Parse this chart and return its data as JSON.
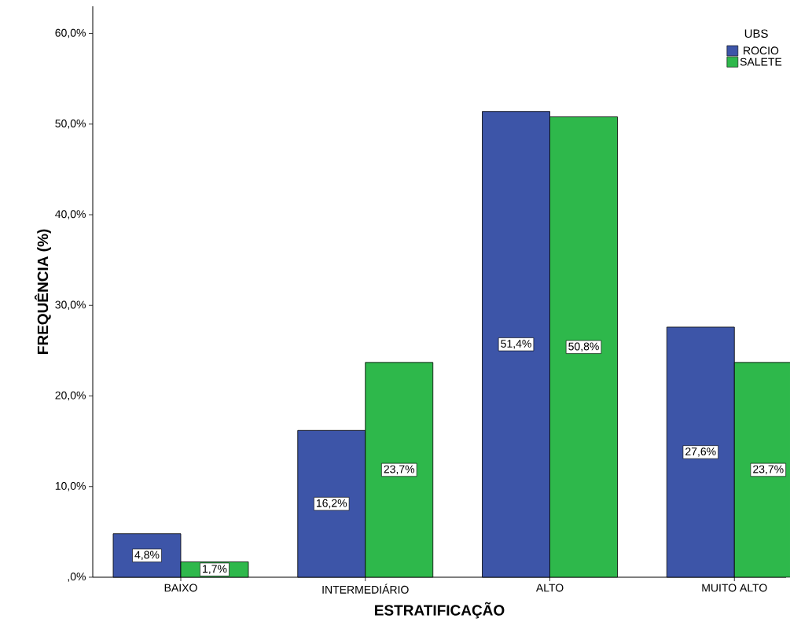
{
  "chart_data": {
    "type": "bar",
    "xlabel": "ESTRATIFICAÇÃO",
    "ylabel": "FREQUÊNCIA (%)",
    "legend_title": "UBS",
    "legend": "top right",
    "categories": [
      "BAIXO",
      "INTERMEDIÁRIO",
      "ALTO",
      "MUITO ALTO"
    ],
    "series": [
      {
        "name": "ROCIO",
        "color": "#3d55a8",
        "values": [
          4.8,
          16.2,
          51.4,
          27.6
        ],
        "value_labels": [
          "4,8%",
          "16,2%",
          "51,4%",
          "27,6%"
        ]
      },
      {
        "name": "SALETE",
        "color": "#2eb84b",
        "values": [
          1.7,
          23.7,
          50.8,
          23.7
        ],
        "value_labels": [
          "1,7%",
          "23,7%",
          "50,8%",
          "23,7%"
        ]
      }
    ],
    "ylim": [
      0,
      63
    ],
    "yticks": [
      {
        "value": 0,
        "label": ",0%"
      },
      {
        "value": 10,
        "label": "10,0%"
      },
      {
        "value": 20,
        "label": "20,0%"
      },
      {
        "value": 30,
        "label": "30,0%"
      },
      {
        "value": 40,
        "label": "40,0%"
      },
      {
        "value": 50,
        "label": "50,0%"
      },
      {
        "value": 60,
        "label": "60,0%"
      }
    ]
  }
}
